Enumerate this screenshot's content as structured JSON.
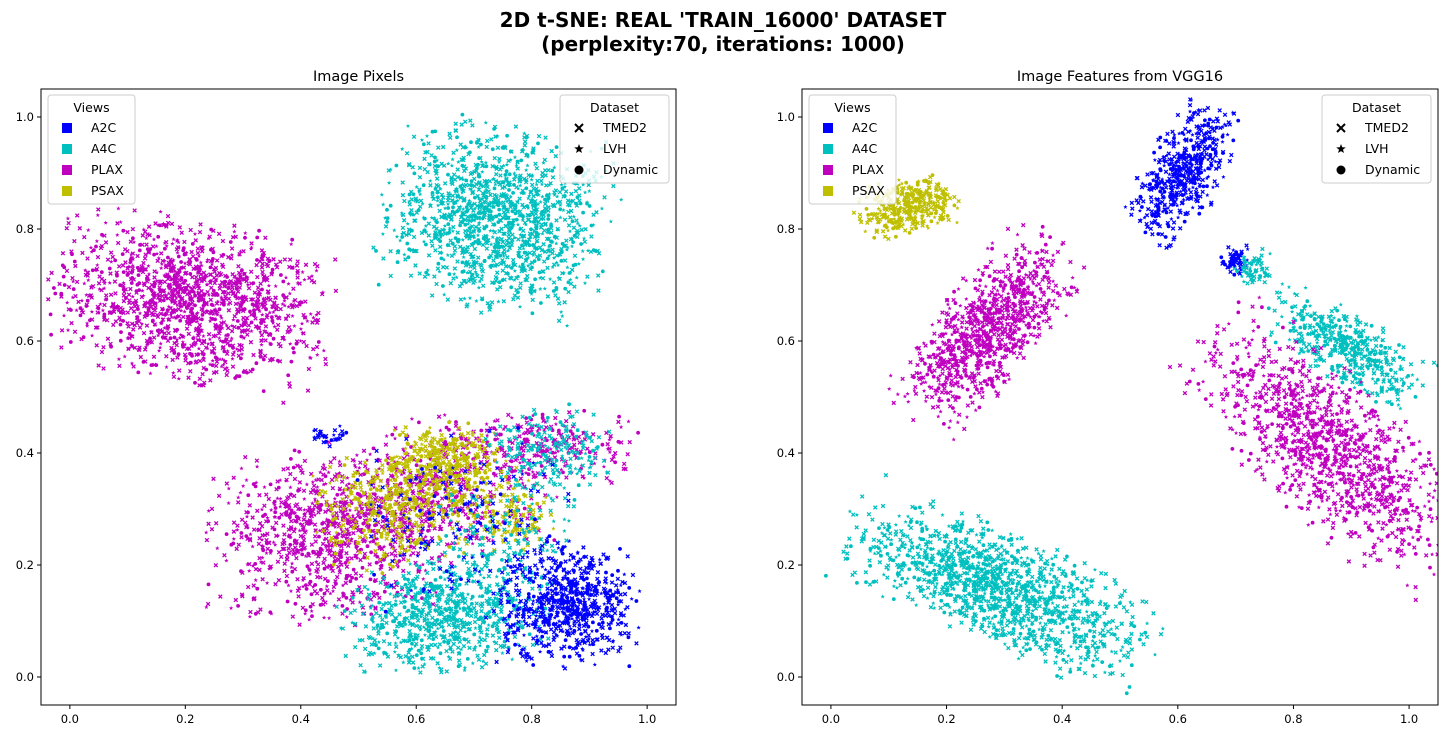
{
  "figure": {
    "title_line1": "2D t-SNE: REAL 'TRAIN_16000' DATASET",
    "title_line2": "(perplexity:70, iterations: 1000)"
  },
  "colors": {
    "A2C": "#0000ff",
    "A4C": "#00bfbf",
    "PLAX": "#bf00bf",
    "PSAX": "#bfbf00"
  },
  "chart_data": [
    {
      "type": "scatter",
      "title": "Image Pixels",
      "xlim": [
        -0.05,
        1.05
      ],
      "ylim": [
        -0.05,
        1.05
      ],
      "xticks": [
        "0.0",
        "0.2",
        "0.4",
        "0.6",
        "0.8",
        "1.0"
      ],
      "yticks": [
        "0.0",
        "0.2",
        "0.4",
        "0.6",
        "0.8",
        "1.0"
      ],
      "grid": false,
      "legends": [
        {
          "title": "Views",
          "placement": "upper-left",
          "entries": [
            "A2C",
            "A4C",
            "PLAX",
            "PSAX"
          ]
        },
        {
          "title": "Dataset",
          "placement": "upper-right",
          "entries": [
            "TMED2",
            "LVH",
            "Dynamic"
          ],
          "markers": [
            "x",
            "star",
            "circle"
          ]
        }
      ],
      "clusters": [
        {
          "view": "A4C",
          "cx": 0.74,
          "cy": 0.82,
          "sx": 0.09,
          "sy": 0.075,
          "rot": -0.2,
          "n": 1300
        },
        {
          "view": "PLAX",
          "cx": 0.21,
          "cy": 0.67,
          "sx": 0.11,
          "sy": 0.065,
          "rot": -0.2,
          "n": 1400
        },
        {
          "view": "PLAX",
          "cx": 0.44,
          "cy": 0.25,
          "sx": 0.09,
          "sy": 0.07,
          "rot": 0.0,
          "n": 800
        },
        {
          "view": "PLAX",
          "cx": 0.62,
          "cy": 0.33,
          "sx": 0.1,
          "sy": 0.06,
          "rot": 0.2,
          "n": 500
        },
        {
          "view": "PLAX",
          "cx": 0.82,
          "cy": 0.41,
          "sx": 0.08,
          "sy": 0.03,
          "rot": 0.0,
          "n": 250
        },
        {
          "view": "PSAX",
          "cx": 0.58,
          "cy": 0.31,
          "sx": 0.07,
          "sy": 0.05,
          "rot": 0.3,
          "n": 500
        },
        {
          "view": "PSAX",
          "cx": 0.66,
          "cy": 0.39,
          "sx": 0.05,
          "sy": 0.03,
          "rot": 0.0,
          "n": 250
        },
        {
          "view": "PSAX",
          "cx": 0.77,
          "cy": 0.29,
          "sx": 0.03,
          "sy": 0.03,
          "rot": 0.0,
          "n": 120
        },
        {
          "view": "A4C",
          "cx": 0.65,
          "cy": 0.11,
          "sx": 0.08,
          "sy": 0.045,
          "rot": 0.2,
          "n": 700
        },
        {
          "view": "A4C",
          "cx": 0.83,
          "cy": 0.4,
          "sx": 0.05,
          "sy": 0.04,
          "rot": 0.0,
          "n": 200
        },
        {
          "view": "A4C",
          "cx": 0.75,
          "cy": 0.24,
          "sx": 0.06,
          "sy": 0.05,
          "rot": 0.0,
          "n": 150
        },
        {
          "view": "A2C",
          "cx": 0.86,
          "cy": 0.13,
          "sx": 0.055,
          "sy": 0.05,
          "rot": 0.0,
          "n": 700
        },
        {
          "view": "A2C",
          "cx": 0.68,
          "cy": 0.29,
          "sx": 0.08,
          "sy": 0.08,
          "rot": 0.0,
          "n": 150
        },
        {
          "view": "A2C",
          "cx": 0.45,
          "cy": 0.43,
          "sx": 0.015,
          "sy": 0.008,
          "rot": 0.0,
          "n": 30
        }
      ]
    },
    {
      "type": "scatter",
      "title": "Image Features from VGG16",
      "xlim": [
        -0.05,
        1.05
      ],
      "ylim": [
        -0.05,
        1.05
      ],
      "xticks": [
        "0.0",
        "0.2",
        "0.4",
        "0.6",
        "0.8",
        "1.0"
      ],
      "yticks": [
        "0.0",
        "0.2",
        "0.4",
        "0.6",
        "0.8",
        "1.0"
      ],
      "grid": false,
      "legends": [
        {
          "title": "Views",
          "placement": "upper-left",
          "entries": [
            "A2C",
            "A4C",
            "PLAX",
            "PSAX"
          ]
        },
        {
          "title": "Dataset",
          "placement": "upper-right",
          "entries": [
            "TMED2",
            "LVH",
            "Dynamic"
          ],
          "markers": [
            "x",
            "star",
            "circle"
          ]
        }
      ],
      "clusters": [
        {
          "view": "PSAX",
          "cx": 0.13,
          "cy": 0.84,
          "sx": 0.04,
          "sy": 0.022,
          "rot": 0.25,
          "n": 350
        },
        {
          "view": "A2C",
          "cx": 0.61,
          "cy": 0.9,
          "sx": 0.03,
          "sy": 0.06,
          "rot": -0.5,
          "n": 500
        },
        {
          "view": "A2C",
          "cx": 0.7,
          "cy": 0.745,
          "sx": 0.012,
          "sy": 0.012,
          "rot": 0.0,
          "n": 60
        },
        {
          "view": "A4C",
          "cx": 0.73,
          "cy": 0.73,
          "sx": 0.015,
          "sy": 0.015,
          "rot": 0.0,
          "n": 60
        },
        {
          "view": "A4C",
          "cx": 0.89,
          "cy": 0.59,
          "sx": 0.07,
          "sy": 0.028,
          "rot": -0.6,
          "n": 450
        },
        {
          "view": "PLAX",
          "cx": 0.27,
          "cy": 0.62,
          "sx": 0.09,
          "sy": 0.04,
          "rot": 0.9,
          "n": 900
        },
        {
          "view": "PLAX",
          "cx": 0.86,
          "cy": 0.41,
          "sx": 0.13,
          "sy": 0.055,
          "rot": -0.75,
          "n": 1100
        },
        {
          "view": "A4C",
          "cx": 0.29,
          "cy": 0.16,
          "sx": 0.13,
          "sy": 0.045,
          "rot": -0.42,
          "n": 1300
        }
      ]
    }
  ]
}
